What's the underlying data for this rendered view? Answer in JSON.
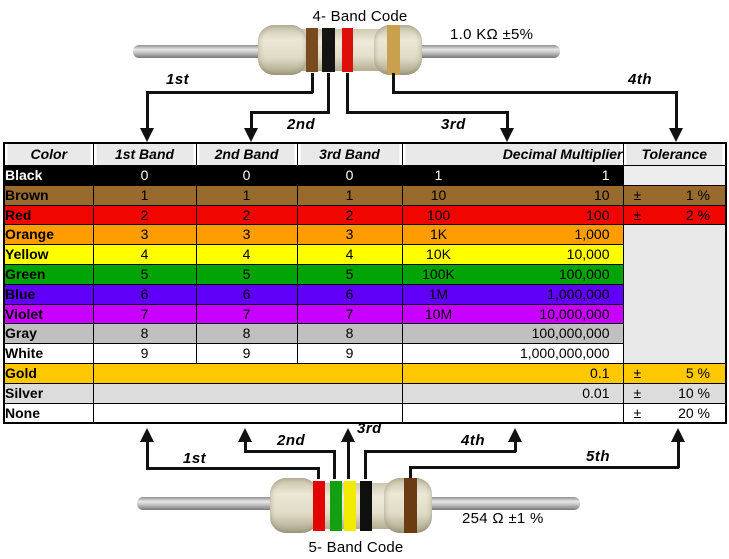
{
  "top_resistor": {
    "title": "4- Band Code",
    "value_label": "1.0 KΩ  ±5%",
    "arrow_labels": [
      "1st",
      "2nd",
      "3rd",
      "4th"
    ],
    "band_names": [
      "brown",
      "black",
      "red",
      "gold"
    ],
    "band_colors": [
      "#7a4a1f",
      "#141414",
      "#dd0f0a",
      "#c9a04e"
    ]
  },
  "bottom_resistor": {
    "title": "5- Band Code",
    "value_label": "254 Ω  ±1 %",
    "arrow_labels": [
      "1st",
      "2nd",
      "3rd",
      "4th",
      "5th"
    ],
    "band_names": [
      "red",
      "green",
      "yellow",
      "black",
      "brown"
    ],
    "band_colors": [
      "#e20400",
      "#12a012",
      "#f2ea00",
      "#0f0f0f",
      "#6b3c12"
    ]
  },
  "table": {
    "headers": [
      "Color",
      "1st Band",
      "2nd Band",
      "3rd Band",
      "Decimal Multiplier",
      "Tolerance"
    ],
    "plus_minus": "±",
    "merged_tolerance_bg": "#E9E9E9",
    "black_row_tolerance_bg": "#EDEDED",
    "rows": [
      {
        "name": "Black",
        "bg": "#000000",
        "fg": "#FFFFFF",
        "bands": [
          "0",
          "0",
          "0"
        ],
        "mult_prefix": "1",
        "mult_value": "1",
        "tol_cell": "gray",
        "tolerance": ""
      },
      {
        "name": "Brown",
        "bg": "#996A2E",
        "fg": "#000000",
        "bands": [
          "1",
          "1",
          "1"
        ],
        "mult_prefix": "10",
        "mult_value": "10",
        "tol_cell": "color",
        "tolerance": "1 %"
      },
      {
        "name": "Red",
        "bg": "#F00500",
        "fg": "#000000",
        "bands": [
          "2",
          "2",
          "2"
        ],
        "mult_prefix": "100",
        "mult_value": "100",
        "tol_cell": "color",
        "tolerance": "2 %"
      },
      {
        "name": "Orange",
        "bg": "#FF9C00",
        "fg": "#000000",
        "bands": [
          "3",
          "3",
          "3"
        ],
        "mult_prefix": "1K",
        "mult_value": "1,000",
        "tol_cell": "merged",
        "tolerance": ""
      },
      {
        "name": "Yellow",
        "bg": "#FFFF00",
        "fg": "#000000",
        "bands": [
          "4",
          "4",
          "4"
        ],
        "mult_prefix": "10K",
        "mult_value": "10,000",
        "tol_cell": "none",
        "tolerance": ""
      },
      {
        "name": "Green",
        "bg": "#00A405",
        "fg": "#000000",
        "bands": [
          "5",
          "5",
          "5"
        ],
        "mult_prefix": "100K",
        "mult_value": "100,000",
        "tol_cell": "none",
        "tolerance": ""
      },
      {
        "name": "Blue",
        "bg": "#6000F8",
        "fg": "#000000",
        "bands": [
          "6",
          "6",
          "6"
        ],
        "mult_prefix": "1M",
        "mult_value": "1,000,000",
        "tol_cell": "none",
        "tolerance": ""
      },
      {
        "name": "Violet",
        "bg": "#C800FF",
        "fg": "#000000",
        "bands": [
          "7",
          "7",
          "7"
        ],
        "mult_prefix": "10M",
        "mult_value": "10,000,000",
        "tol_cell": "none",
        "tolerance": ""
      },
      {
        "name": "Gray",
        "bg": "#C0C0C0",
        "fg": "#000000",
        "bands": [
          "8",
          "8",
          "8"
        ],
        "mult_prefix": "",
        "mult_value": "100,000,000",
        "tol_cell": "none",
        "tolerance": ""
      },
      {
        "name": "White",
        "bg": "#FFFFFF",
        "fg": "#000000",
        "bands": [
          "9",
          "9",
          "9"
        ],
        "mult_prefix": "",
        "mult_value": "1,000,000,000",
        "tol_cell": "none",
        "tolerance": ""
      },
      {
        "name": "Gold",
        "bg": "#FFC800",
        "fg": "#000000",
        "merged_bands": true,
        "mult_prefix": "",
        "mult_value": "0.1",
        "tol_cell": "color",
        "tolerance": "5 %"
      },
      {
        "name": "Silver",
        "bg": "#DCDCDC",
        "fg": "#000000",
        "merged_bands": true,
        "mult_prefix": "",
        "mult_value": "0.01",
        "tol_cell": "color",
        "tolerance": "10 %"
      },
      {
        "name": "None",
        "bg": "#FFFFFF",
        "fg": "#000000",
        "merged_bands": true,
        "mult_prefix": "",
        "mult_value": "",
        "tol_cell": "color",
        "tolerance": "20 %"
      }
    ]
  }
}
